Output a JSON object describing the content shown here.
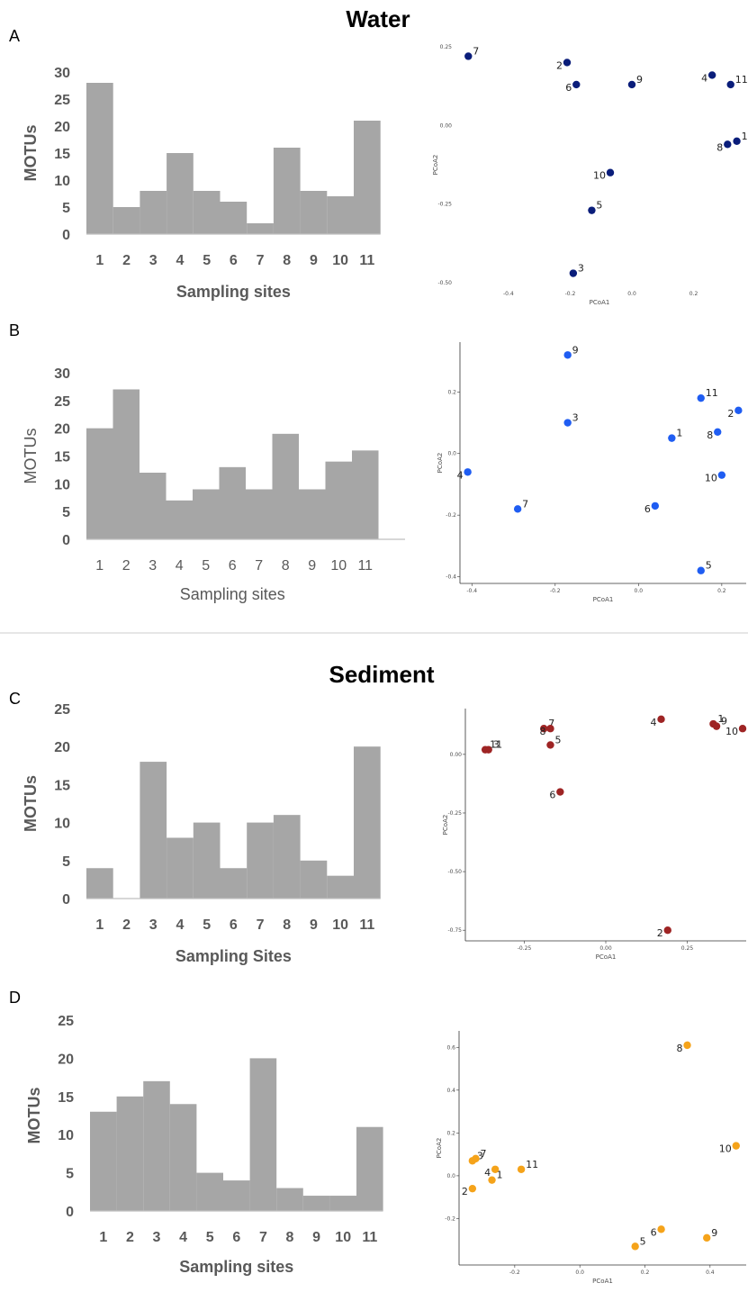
{
  "headings": {
    "water": "Water",
    "sediment": "Sediment"
  },
  "colors": {
    "bar": "#a6a6a6",
    "A": "#0a1d7a",
    "B": "#1f5df2",
    "C": "#9e2424",
    "D": "#f5a31a",
    "divider": "#e6e6e6"
  },
  "chart_data": [
    {
      "panel": "A",
      "type": "bar",
      "xlabel": "Sampling sites",
      "ylabel": "MOTUs",
      "categories": [
        "1",
        "2",
        "3",
        "4",
        "5",
        "6",
        "7",
        "8",
        "9",
        "10",
        "11"
      ],
      "values": [
        28,
        5,
        8,
        15,
        8,
        6,
        2,
        16,
        8,
        7,
        21
      ],
      "ylim": [
        0,
        30
      ],
      "yticks": [
        "0",
        "5",
        "10",
        "15",
        "20",
        "25",
        "30"
      ]
    },
    {
      "panel": "A",
      "type": "scatter",
      "xlabel": "PCoA1",
      "ylabel": "PCoA2",
      "xlim": [
        -0.56,
        0.35
      ],
      "ylim": [
        -0.5,
        0.25
      ],
      "xticks": [
        "-0.4",
        "-0.2",
        "0.0",
        "0.2"
      ],
      "yticks": [
        "-0.50",
        "-0.25",
        "0.00",
        "0.25"
      ],
      "points": [
        {
          "label": "1",
          "x": 0.34,
          "y": -0.05
        },
        {
          "label": "2",
          "x": -0.21,
          "y": 0.2
        },
        {
          "label": "3",
          "x": -0.19,
          "y": -0.47
        },
        {
          "label": "4",
          "x": 0.26,
          "y": 0.16
        },
        {
          "label": "5",
          "x": -0.13,
          "y": -0.27
        },
        {
          "label": "6",
          "x": -0.18,
          "y": 0.13
        },
        {
          "label": "7",
          "x": -0.53,
          "y": 0.22
        },
        {
          "label": "8",
          "x": 0.31,
          "y": -0.06
        },
        {
          "label": "9",
          "x": 0.0,
          "y": 0.13
        },
        {
          "label": "10",
          "x": -0.07,
          "y": -0.15
        },
        {
          "label": "11",
          "x": 0.32,
          "y": 0.13
        }
      ]
    },
    {
      "panel": "B",
      "type": "bar",
      "xlabel": "Sampling sites",
      "ylabel": "MOTUs",
      "categories": [
        "1",
        "2",
        "3",
        "4",
        "5",
        "6",
        "7",
        "8",
        "9",
        "10",
        "11"
      ],
      "values": [
        20,
        27,
        12,
        7,
        9,
        13,
        9,
        19,
        9,
        14,
        16
      ],
      "ylim": [
        0,
        30
      ],
      "yticks": [
        "0",
        "5",
        "10",
        "15",
        "20",
        "25",
        "30"
      ]
    },
    {
      "panel": "B",
      "type": "scatter",
      "xlabel": "PCoA1",
      "ylabel": "PCoA2",
      "xlim": [
        -0.42,
        0.25
      ],
      "ylim": [
        -0.41,
        0.35
      ],
      "xticks": [
        "-0.4",
        "-0.2",
        "0.0",
        "0.2"
      ],
      "yticks": [
        "-0.4",
        "-0.2",
        "0.0",
        "0.2"
      ],
      "points": [
        {
          "label": "1",
          "x": 0.08,
          "y": 0.05
        },
        {
          "label": "2",
          "x": 0.24,
          "y": 0.14
        },
        {
          "label": "3",
          "x": -0.17,
          "y": 0.1
        },
        {
          "label": "4",
          "x": -0.41,
          "y": -0.06
        },
        {
          "label": "5",
          "x": 0.15,
          "y": -0.38
        },
        {
          "label": "6",
          "x": 0.04,
          "y": -0.17
        },
        {
          "label": "7",
          "x": -0.29,
          "y": -0.18
        },
        {
          "label": "8",
          "x": 0.19,
          "y": 0.07
        },
        {
          "label": "9",
          "x": -0.17,
          "y": 0.32
        },
        {
          "label": "10",
          "x": 0.2,
          "y": -0.07
        },
        {
          "label": "11",
          "x": 0.15,
          "y": 0.18
        }
      ]
    },
    {
      "panel": "C",
      "type": "bar",
      "xlabel": "Sampling Sites",
      "ylabel": "MOTUs",
      "categories": [
        "1",
        "2",
        "3",
        "4",
        "5",
        "6",
        "7",
        "8",
        "9",
        "10",
        "11"
      ],
      "values": [
        4,
        0,
        18,
        8,
        10,
        4,
        10,
        11,
        5,
        3,
        20
      ],
      "ylim": [
        0,
        25
      ],
      "yticks": [
        "0",
        "5",
        "10",
        "15",
        "20",
        "25"
      ]
    },
    {
      "panel": "C",
      "type": "scatter",
      "xlabel": "PCoA1",
      "ylabel": "PCoA2",
      "xlim": [
        -0.42,
        0.42
      ],
      "ylim": [
        -0.78,
        0.18
      ],
      "xticks": [
        "-0.25",
        "0.00",
        "0.25"
      ],
      "yticks": [
        "-0.75",
        "-0.50",
        "-0.25",
        "0.00"
      ],
      "points": [
        {
          "label": "1",
          "x": 0.33,
          "y": 0.13
        },
        {
          "label": "2",
          "x": 0.19,
          "y": -0.75
        },
        {
          "label": "3",
          "x": -0.36,
          "y": 0.02
        },
        {
          "label": "4",
          "x": 0.17,
          "y": 0.15
        },
        {
          "label": "5",
          "x": -0.17,
          "y": 0.04
        },
        {
          "label": "6",
          "x": -0.14,
          "y": -0.16
        },
        {
          "label": "7",
          "x": -0.19,
          "y": 0.11
        },
        {
          "label": "8",
          "x": -0.17,
          "y": 0.11
        },
        {
          "label": "9",
          "x": 0.34,
          "y": 0.12
        },
        {
          "label": "10",
          "x": 0.42,
          "y": 0.11
        },
        {
          "label": "11",
          "x": -0.37,
          "y": 0.02
        }
      ]
    },
    {
      "panel": "D",
      "type": "bar",
      "xlabel": "Sampling sites",
      "ylabel": "MOTUs",
      "categories": [
        "1",
        "2",
        "3",
        "4",
        "5",
        "6",
        "7",
        "8",
        "9",
        "10",
        "11"
      ],
      "values": [
        13,
        15,
        17,
        14,
        5,
        4,
        20,
        3,
        2,
        2,
        11
      ],
      "ylim": [
        0,
        25
      ],
      "yticks": [
        "0",
        "5",
        "10",
        "15",
        "20",
        "25"
      ]
    },
    {
      "panel": "D",
      "type": "scatter",
      "xlabel": "PCoA1",
      "ylabel": "PCoA2",
      "xlim": [
        -0.36,
        0.5
      ],
      "ylim": [
        -0.4,
        0.66
      ],
      "xticks": [
        "-0.2",
        "0.0",
        "0.2",
        "0.4"
      ],
      "yticks": [
        "-0.2",
        "0.0",
        "0.2",
        "0.4",
        "0.6"
      ],
      "points": [
        {
          "label": "1",
          "x": -0.27,
          "y": -0.02
        },
        {
          "label": "2",
          "x": -0.33,
          "y": -0.06
        },
        {
          "label": "3",
          "x": -0.33,
          "y": 0.07
        },
        {
          "label": "4",
          "x": -0.26,
          "y": 0.03
        },
        {
          "label": "5",
          "x": 0.17,
          "y": -0.33
        },
        {
          "label": "6",
          "x": 0.25,
          "y": -0.25
        },
        {
          "label": "7",
          "x": -0.32,
          "y": 0.08
        },
        {
          "label": "8",
          "x": 0.33,
          "y": 0.61
        },
        {
          "label": "9",
          "x": 0.39,
          "y": -0.29
        },
        {
          "label": "10",
          "x": 0.48,
          "y": 0.14
        },
        {
          "label": "11",
          "x": -0.18,
          "y": 0.03
        }
      ]
    }
  ]
}
